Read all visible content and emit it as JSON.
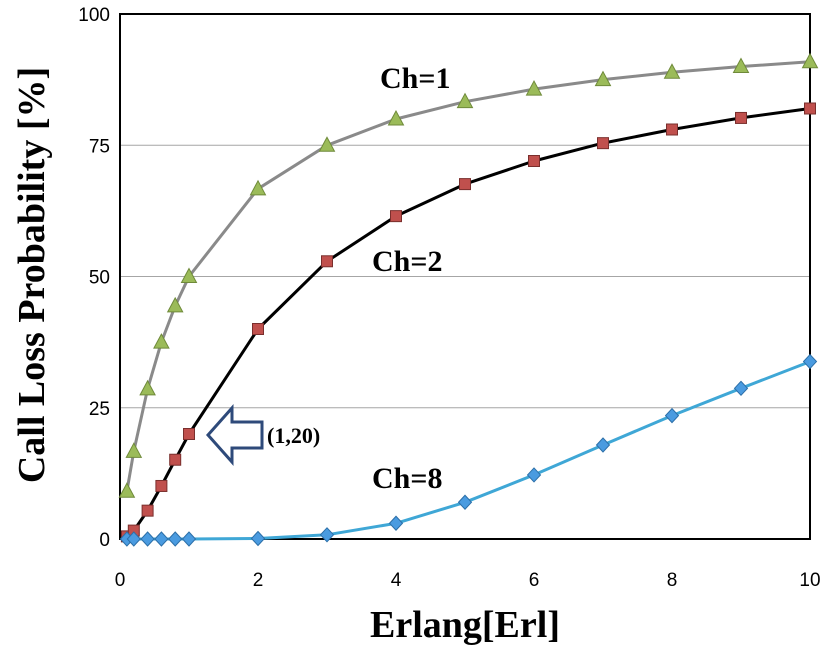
{
  "chart_data": {
    "type": "line",
    "xlabel": "Erlang[Erl]",
    "ylabel": "Call Loss Probability [%]",
    "xlim": [
      0,
      10
    ],
    "ylim": [
      0,
      100
    ],
    "xticks": [
      0,
      2,
      4,
      6,
      8,
      10
    ],
    "yticks": [
      0,
      25,
      50,
      75,
      100
    ],
    "grid": "horizontal",
    "series": [
      {
        "name": "Ch=1",
        "color": "#8a8a8a",
        "marker": "triangle",
        "marker_color": "#9bbb59",
        "x": [
          0.1,
          0.2,
          0.4,
          0.6,
          0.8,
          1,
          2,
          3,
          4,
          5,
          6,
          7,
          8,
          9,
          10
        ],
        "y": [
          9.1,
          16.7,
          28.6,
          37.5,
          44.4,
          50.0,
          66.7,
          75.0,
          80.0,
          83.3,
          85.7,
          87.5,
          88.9,
          90.0,
          90.9
        ]
      },
      {
        "name": "Ch=2",
        "color": "#000000",
        "marker": "square",
        "marker_color": "#c0504d",
        "x": [
          0.1,
          0.2,
          0.4,
          0.6,
          0.8,
          1,
          2,
          3,
          4,
          5,
          6,
          7,
          8,
          9,
          10
        ],
        "y": [
          0.5,
          1.6,
          5.4,
          10.1,
          15.1,
          20.0,
          40.0,
          52.9,
          61.5,
          67.6,
          72.0,
          75.4,
          78.0,
          80.2,
          82.0
        ]
      },
      {
        "name": "Ch=8",
        "color": "#3fa7d6",
        "marker": "diamond",
        "marker_color": "#4a9be0",
        "x": [
          0.1,
          0.2,
          0.4,
          0.6,
          0.8,
          1,
          2,
          3,
          4,
          5,
          6,
          7,
          8,
          9,
          10
        ],
        "y": [
          0,
          0,
          0,
          0,
          0,
          0,
          0.1,
          0.8,
          3.0,
          7.0,
          12.2,
          17.9,
          23.5,
          28.7,
          33.8
        ]
      }
    ],
    "annotations": [
      {
        "text": "(1,20)",
        "x": 1,
        "y": 20
      }
    ]
  }
}
